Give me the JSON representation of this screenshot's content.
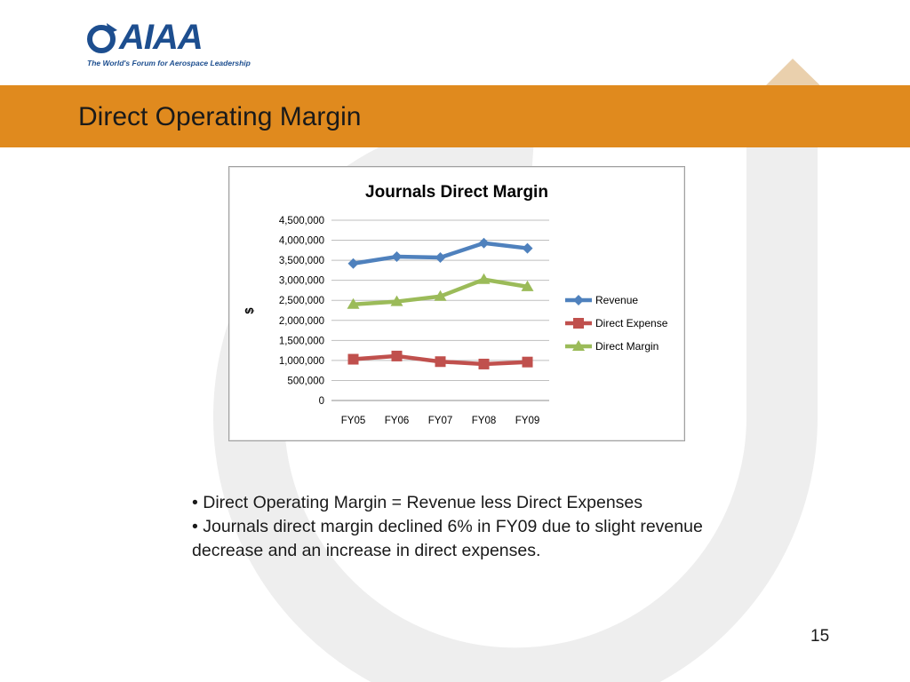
{
  "logo": {
    "text": "AIAA",
    "tagline": "The World's Forum for Aerospace Leadership"
  },
  "slide": {
    "title": "Direct Operating Margin",
    "page_number": "15"
  },
  "bullets": [
    "•  Direct Operating Margin = Revenue less Direct Expenses",
    "•  Journals direct margin declined 6% in FY09 due to slight revenue decrease and an increase in direct expenses."
  ],
  "chart_data": {
    "type": "line",
    "title": "Journals Direct Margin",
    "xlabel": "",
    "ylabel": "$",
    "categories": [
      "FY05",
      "FY06",
      "FY07",
      "FY08",
      "FY09"
    ],
    "ylim": [
      0,
      4500000
    ],
    "yticks": [
      0,
      500000,
      1000000,
      1500000,
      2000000,
      2500000,
      3000000,
      3500000,
      4000000,
      4500000
    ],
    "ytick_labels": [
      "0",
      "500,000",
      "1,000,000",
      "1,500,000",
      "2,000,000",
      "2,500,000",
      "3,000,000",
      "3,500,000",
      "4,000,000",
      "4,500,000"
    ],
    "grid": true,
    "legend_position": "right",
    "series": [
      {
        "name": "Revenue",
        "values": [
          3420000,
          3590000,
          3570000,
          3930000,
          3800000
        ],
        "color": "#4f81bd",
        "marker": "diamond"
      },
      {
        "name": "Direct Expense",
        "values": [
          1030000,
          1110000,
          970000,
          910000,
          960000
        ],
        "color": "#c0504d",
        "marker": "square"
      },
      {
        "name": "Direct Margin",
        "values": [
          2400000,
          2470000,
          2600000,
          3020000,
          2840000
        ],
        "color": "#9bbb59",
        "marker": "triangle"
      }
    ]
  },
  "colors": {
    "band": "#e08a1e",
    "logo": "#1d4e8f"
  }
}
